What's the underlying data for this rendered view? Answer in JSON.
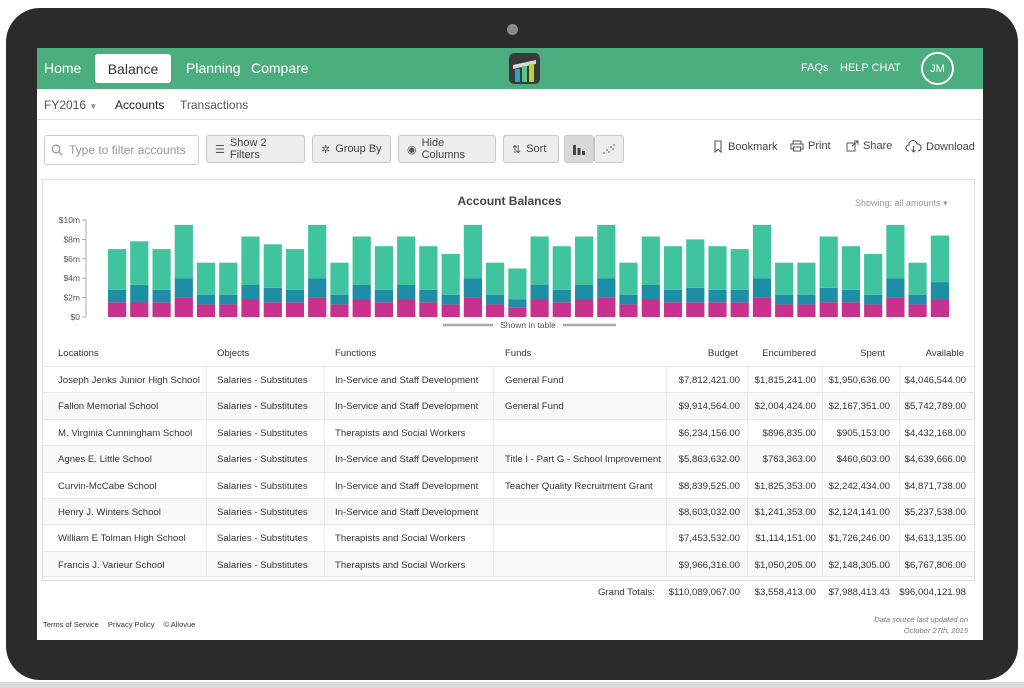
{
  "nav": {
    "home": "Home",
    "balance": "Balance",
    "planning": "Planning",
    "compare": "Compare",
    "faqs": "FAQs",
    "help_chat": "HELP CHAT",
    "avatar_initials": "JM"
  },
  "subnav": {
    "fiscal_year": "FY2016",
    "accounts": "Accounts",
    "transactions": "Transactions"
  },
  "toolbar": {
    "search_placeholder": "Type to filter accounts",
    "filters": "Show 2 Filters",
    "group_by": "Group By",
    "hide_columns": "Hide Columns",
    "sort": "Sort",
    "bookmark": "Bookmark",
    "print": "Print",
    "share": "Share",
    "download": "Download"
  },
  "chart_data": {
    "type": "bar",
    "title": "Account Balances",
    "showing": "Showing: all amounts",
    "footer_label": "Shown in table",
    "y_ticks": [
      "$0",
      "$2m",
      "$4m",
      "$6m",
      "$8m",
      "$10m"
    ],
    "ylim": [
      0,
      10
    ],
    "stacked": true,
    "series": [
      {
        "color": "#c8328c",
        "values": [
          1.5,
          1.5,
          1.5,
          2,
          1.3,
          1.3,
          1.8,
          1.5,
          1.5,
          2,
          1.3,
          1.8,
          1.5,
          1.8,
          1.5,
          1.3,
          2,
          1.3,
          1.0,
          1.8,
          1.5,
          1.8,
          2,
          1.3,
          1.8,
          1.5,
          1.5,
          1.5,
          1.5,
          2,
          1.3,
          1.3,
          1.5,
          1.5,
          1.3,
          2,
          1.3,
          1.8
        ]
      },
      {
        "color": "#1e8ea6",
        "values": [
          1.3,
          1.8,
          1.3,
          2,
          1.0,
          1.0,
          1.5,
          1.5,
          1.3,
          2,
          1.0,
          1.5,
          1.3,
          1.5,
          1.3,
          1.0,
          2,
          1.0,
          0.8,
          1.5,
          1.3,
          1.5,
          2,
          1.0,
          1.5,
          1.3,
          1.5,
          1.3,
          1.3,
          2,
          1.0,
          1.0,
          1.5,
          1.3,
          1.0,
          2,
          1.0,
          1.8
        ]
      },
      {
        "color": "#40c4a0",
        "values": [
          4.2,
          4.5,
          4.2,
          5.5,
          3.3,
          3.3,
          5.0,
          4.5,
          4.2,
          5.5,
          3.3,
          5.0,
          4.5,
          5.0,
          4.5,
          4.2,
          5.5,
          3.3,
          3.2,
          5.0,
          4.5,
          5.0,
          5.5,
          3.3,
          5.0,
          4.5,
          5.0,
          4.5,
          4.2,
          5.5,
          3.3,
          3.3,
          5.3,
          4.5,
          4.2,
          5.5,
          3.3,
          4.8
        ]
      }
    ]
  },
  "table": {
    "headers": [
      "Locations",
      "Objects",
      "Functions",
      "Funds",
      "Budget",
      "Encumbered",
      "Spent",
      "Available"
    ],
    "rows": [
      [
        "Joseph Jenks Junior High School",
        "Salaries  - Substitutes",
        "In-Service and Staff Development",
        "General Fund",
        "$7,812,421.00",
        "$1,815,241.00",
        "$1,950,636.00",
        "$4,046,544.00"
      ],
      [
        "Fallon Memorial School",
        "Salaries  - Substitutes",
        "In-Service and Staff Development",
        "General Fund",
        "$9,914,564.00",
        "$2,004,424.00",
        "$2,167,351.00",
        "$5,742,789.00"
      ],
      [
        "M. Virginia Cunningham School",
        "Salaries  - Substitutes",
        "Therapists and Social Workers",
        "",
        "$6,234,156.00",
        "$896,835.00",
        "$905,153.00",
        "$4,432,168.00"
      ],
      [
        "Agnes E. Little School",
        "Salaries  - Substitutes",
        "In-Service and Staff Development",
        "Title I - Part G - School Improvement",
        "$5,863,632.00",
        "$763,363.00",
        "$460,603.00",
        "$4,639,666.00"
      ],
      [
        "Curvin-McCabe School",
        "Salaries  - Substitutes",
        "In-Service and Staff Development",
        "Teacher Quality Recruitment Grant",
        "$8,839,525.00",
        "$1,825,353.00",
        "$2,242,434.00",
        "$4,871,738.00"
      ],
      [
        "Henry J. Winters School",
        "Salaries  - Substitutes",
        "In-Service and Staff Development",
        "",
        "$8,603,032.00",
        "$1,241,353.00",
        "$2,124,141.00",
        "$5,237,538.00"
      ],
      [
        "William E Tolman High School",
        "Salaries  - Substitutes",
        "Therapists and Social Workers",
        "",
        "$7,453,532.00",
        "$1,114,151.00",
        "$1,726,246.00",
        "$4,613,135.00"
      ],
      [
        "Francis J. Varieur School",
        "Salaries  - Substitutes",
        "Therapists and Social Workers",
        "",
        "$9,966,316.00",
        "$1,050,205.00",
        "$2,148,305.00",
        "$6,767,806.00"
      ]
    ],
    "totals_label": "Grand Totals:",
    "totals": [
      "$110,089,067.00",
      "$3,558,413.00",
      "$7,988,413.43",
      "$96,004,121.98"
    ]
  },
  "footer": {
    "terms": "Terms of Service",
    "privacy": "Privacy Policy",
    "copyright": "© Allovue",
    "data_source_line1": "Data source last updated on",
    "data_source_line2": "October 27th, 2015"
  }
}
